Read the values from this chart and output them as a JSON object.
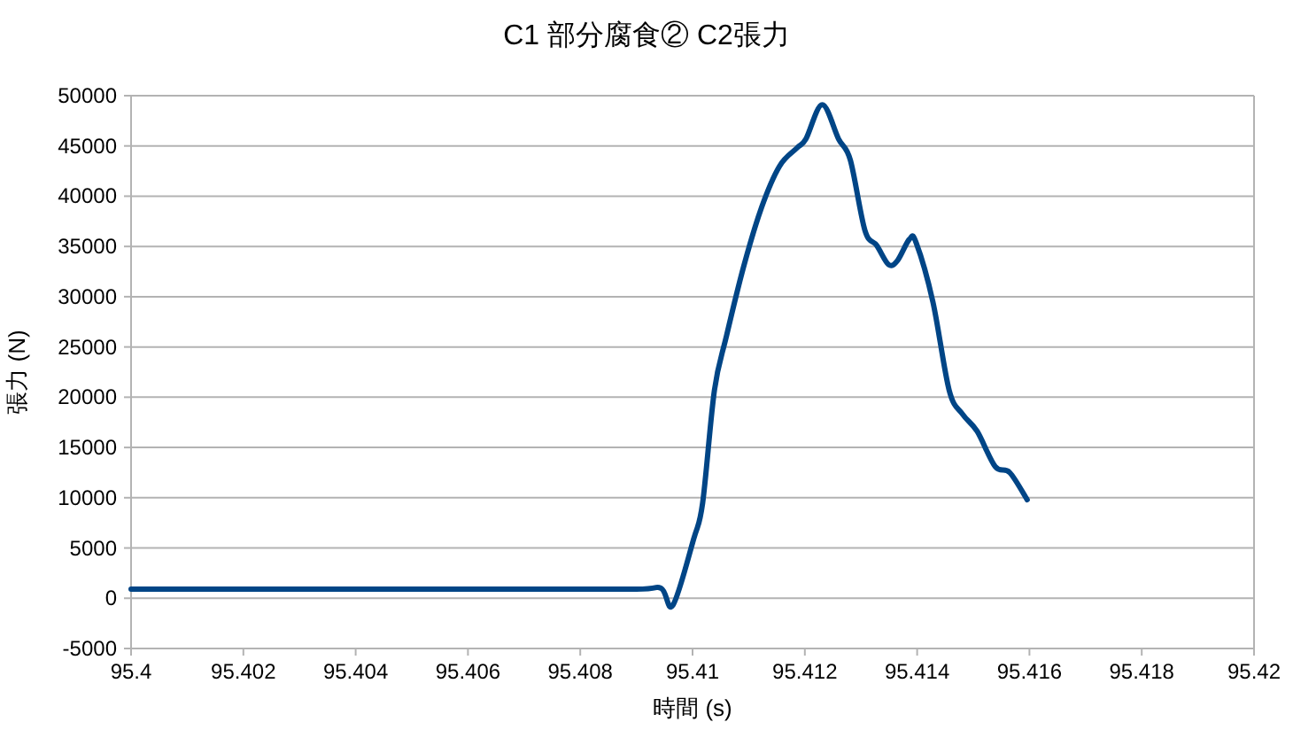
{
  "chart_data": {
    "type": "line",
    "title": "C1  部分腐食②  C2張力",
    "xlabel": "時間 (s)",
    "ylabel": "張力 (N)",
    "xlim": [
      95.4,
      95.42
    ],
    "xticks": [
      95.4,
      95.402,
      95.404,
      95.406,
      95.408,
      95.41,
      95.412,
      95.414,
      95.416,
      95.418,
      95.42
    ],
    "ylim": [
      -5000,
      50000
    ],
    "yticks": [
      -5000,
      0,
      5000,
      10000,
      15000,
      20000,
      25000,
      30000,
      35000,
      40000,
      45000,
      50000
    ],
    "grid": "y",
    "marker": "none",
    "line_style": "solid",
    "series": [
      {
        "color": "#004586",
        "x": [
          95.4,
          95.405,
          95.409,
          95.40944,
          95.40965,
          95.41002,
          95.41018,
          95.41039,
          95.4106,
          95.41091,
          95.41123,
          95.41155,
          95.41186,
          95.41202,
          95.41231,
          95.4126,
          95.41281,
          95.41307,
          95.41328,
          95.41349,
          95.41365,
          95.41386,
          95.41398,
          95.41428,
          95.41457,
          95.41481,
          95.41507,
          95.41539,
          95.41565,
          95.41596
        ],
        "values": [
          900,
          900,
          900,
          1000,
          -700,
          5900,
          9500,
          20700,
          26000,
          33000,
          38900,
          43000,
          44800,
          45700,
          49100,
          45700,
          43600,
          36600,
          35100,
          33200,
          33600,
          35700,
          35400,
          29500,
          20700,
          18300,
          16600,
          13100,
          12500,
          9800
        ]
      }
    ]
  }
}
